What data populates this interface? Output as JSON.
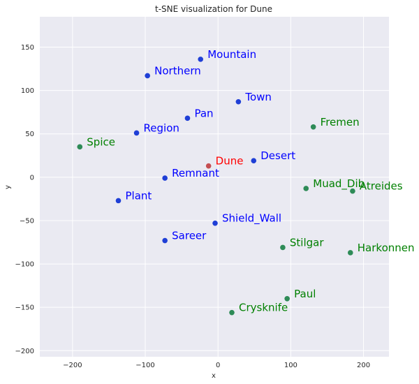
{
  "chart_data": {
    "type": "scatter",
    "title": "t-SNE visualization for Dune",
    "xlabel": "x",
    "ylabel": "y",
    "xlim": [
      -245,
      235
    ],
    "ylim": [
      -207,
      185
    ],
    "xticks": [
      -200,
      -100,
      0,
      100,
      200
    ],
    "yticks": [
      -200,
      -150,
      -100,
      -50,
      0,
      50,
      100,
      150
    ],
    "xtick_labels": [
      "−200",
      "−100",
      "0",
      "100",
      "200"
    ],
    "ytick_labels": [
      "−200",
      "−150",
      "−100",
      "−50",
      "0",
      "50",
      "100",
      "150"
    ],
    "grid": true,
    "colors": {
      "background": "#eaeaf2",
      "grid": "#ffffff",
      "query_point": "#c44e52",
      "query_text": "#ff0000",
      "group_a_point": "#1f3fd6",
      "group_a_text": "#0000ff",
      "group_b_point": "#2e8b57",
      "group_b_text": "#008000"
    },
    "points": [
      {
        "label": "Dune",
        "x": -13,
        "y": 13,
        "group": "query"
      },
      {
        "label": "Mountain",
        "x": -24,
        "y": 136,
        "group": "a"
      },
      {
        "label": "Northern",
        "x": -97,
        "y": 117,
        "group": "a"
      },
      {
        "label": "Town",
        "x": 28,
        "y": 87,
        "group": "a"
      },
      {
        "label": "Pan",
        "x": -42,
        "y": 68,
        "group": "a"
      },
      {
        "label": "Region",
        "x": -112,
        "y": 51,
        "group": "a"
      },
      {
        "label": "Desert",
        "x": 49,
        "y": 19,
        "group": "a"
      },
      {
        "label": "Remnant",
        "x": -73,
        "y": -1,
        "group": "a"
      },
      {
        "label": "Plant",
        "x": -137,
        "y": -27,
        "group": "a"
      },
      {
        "label": "Shield_Wall",
        "x": -4,
        "y": -53,
        "group": "a"
      },
      {
        "label": "Sareer",
        "x": -73,
        "y": -73,
        "group": "a"
      },
      {
        "label": "Fremen",
        "x": 131,
        "y": 58,
        "group": "b"
      },
      {
        "label": "Spice",
        "x": -190,
        "y": 35,
        "group": "b"
      },
      {
        "label": "Muad_Dib",
        "x": 121,
        "y": -13,
        "group": "b"
      },
      {
        "label": "Atreides",
        "x": 185,
        "y": -16,
        "group": "b"
      },
      {
        "label": "Stilgar",
        "x": 89,
        "y": -81,
        "group": "b"
      },
      {
        "label": "Harkonnen",
        "x": 182,
        "y": -87,
        "group": "b"
      },
      {
        "label": "Paul",
        "x": 95,
        "y": -140,
        "group": "b"
      },
      {
        "label": "Crysknife",
        "x": 19,
        "y": -156,
        "group": "b"
      }
    ]
  }
}
